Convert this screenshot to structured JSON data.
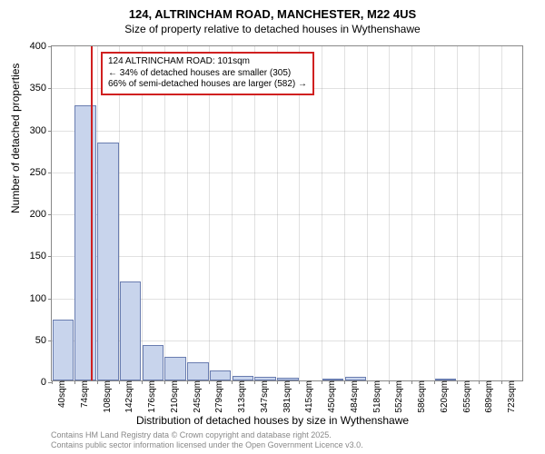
{
  "title": "124, ALTRINCHAM ROAD, MANCHESTER, M22 4US",
  "subtitle": "Size of property relative to detached houses in Wythenshawe",
  "ylabel": "Number of detached properties",
  "xlabel": "Distribution of detached houses by size in Wythenshawe",
  "footer_line1": "Contains HM Land Registry data © Crown copyright and database right 2025.",
  "footer_line2": "Contains public sector information licensed under the Open Government Licence v3.0.",
  "chart": {
    "type": "histogram",
    "ylim": [
      0,
      400
    ],
    "ytick_step": 50,
    "yticks": [
      0,
      50,
      100,
      150,
      200,
      250,
      300,
      350,
      400
    ],
    "x_categories": [
      "40sqm",
      "74sqm",
      "108sqm",
      "142sqm",
      "176sqm",
      "210sqm",
      "245sqm",
      "279sqm",
      "313sqm",
      "347sqm",
      "381sqm",
      "415sqm",
      "450sqm",
      "484sqm",
      "518sqm",
      "552sqm",
      "586sqm",
      "620sqm",
      "655sqm",
      "689sqm",
      "723sqm"
    ],
    "values": [
      72,
      328,
      283,
      118,
      42,
      28,
      22,
      12,
      5,
      4,
      3,
      0,
      2,
      4,
      0,
      0,
      0,
      2,
      0,
      0,
      0
    ],
    "bar_color": "#c8d4ec",
    "bar_border_color": "#6a7db0",
    "marker_position_index": 1.75,
    "marker_color": "#d02020",
    "background_color": "#ffffff",
    "grid_color": "#888888",
    "axis_color": "#888888",
    "title_fontsize": 13,
    "subtitle_fontsize": 12,
    "label_fontsize": 12,
    "tick_fontsize": 10
  },
  "annotation": {
    "line1": "124 ALTRINCHAM ROAD: 101sqm",
    "line2": "← 34% of detached houses are smaller (305)",
    "line3": "66% of semi-detached houses are larger (582) →"
  }
}
